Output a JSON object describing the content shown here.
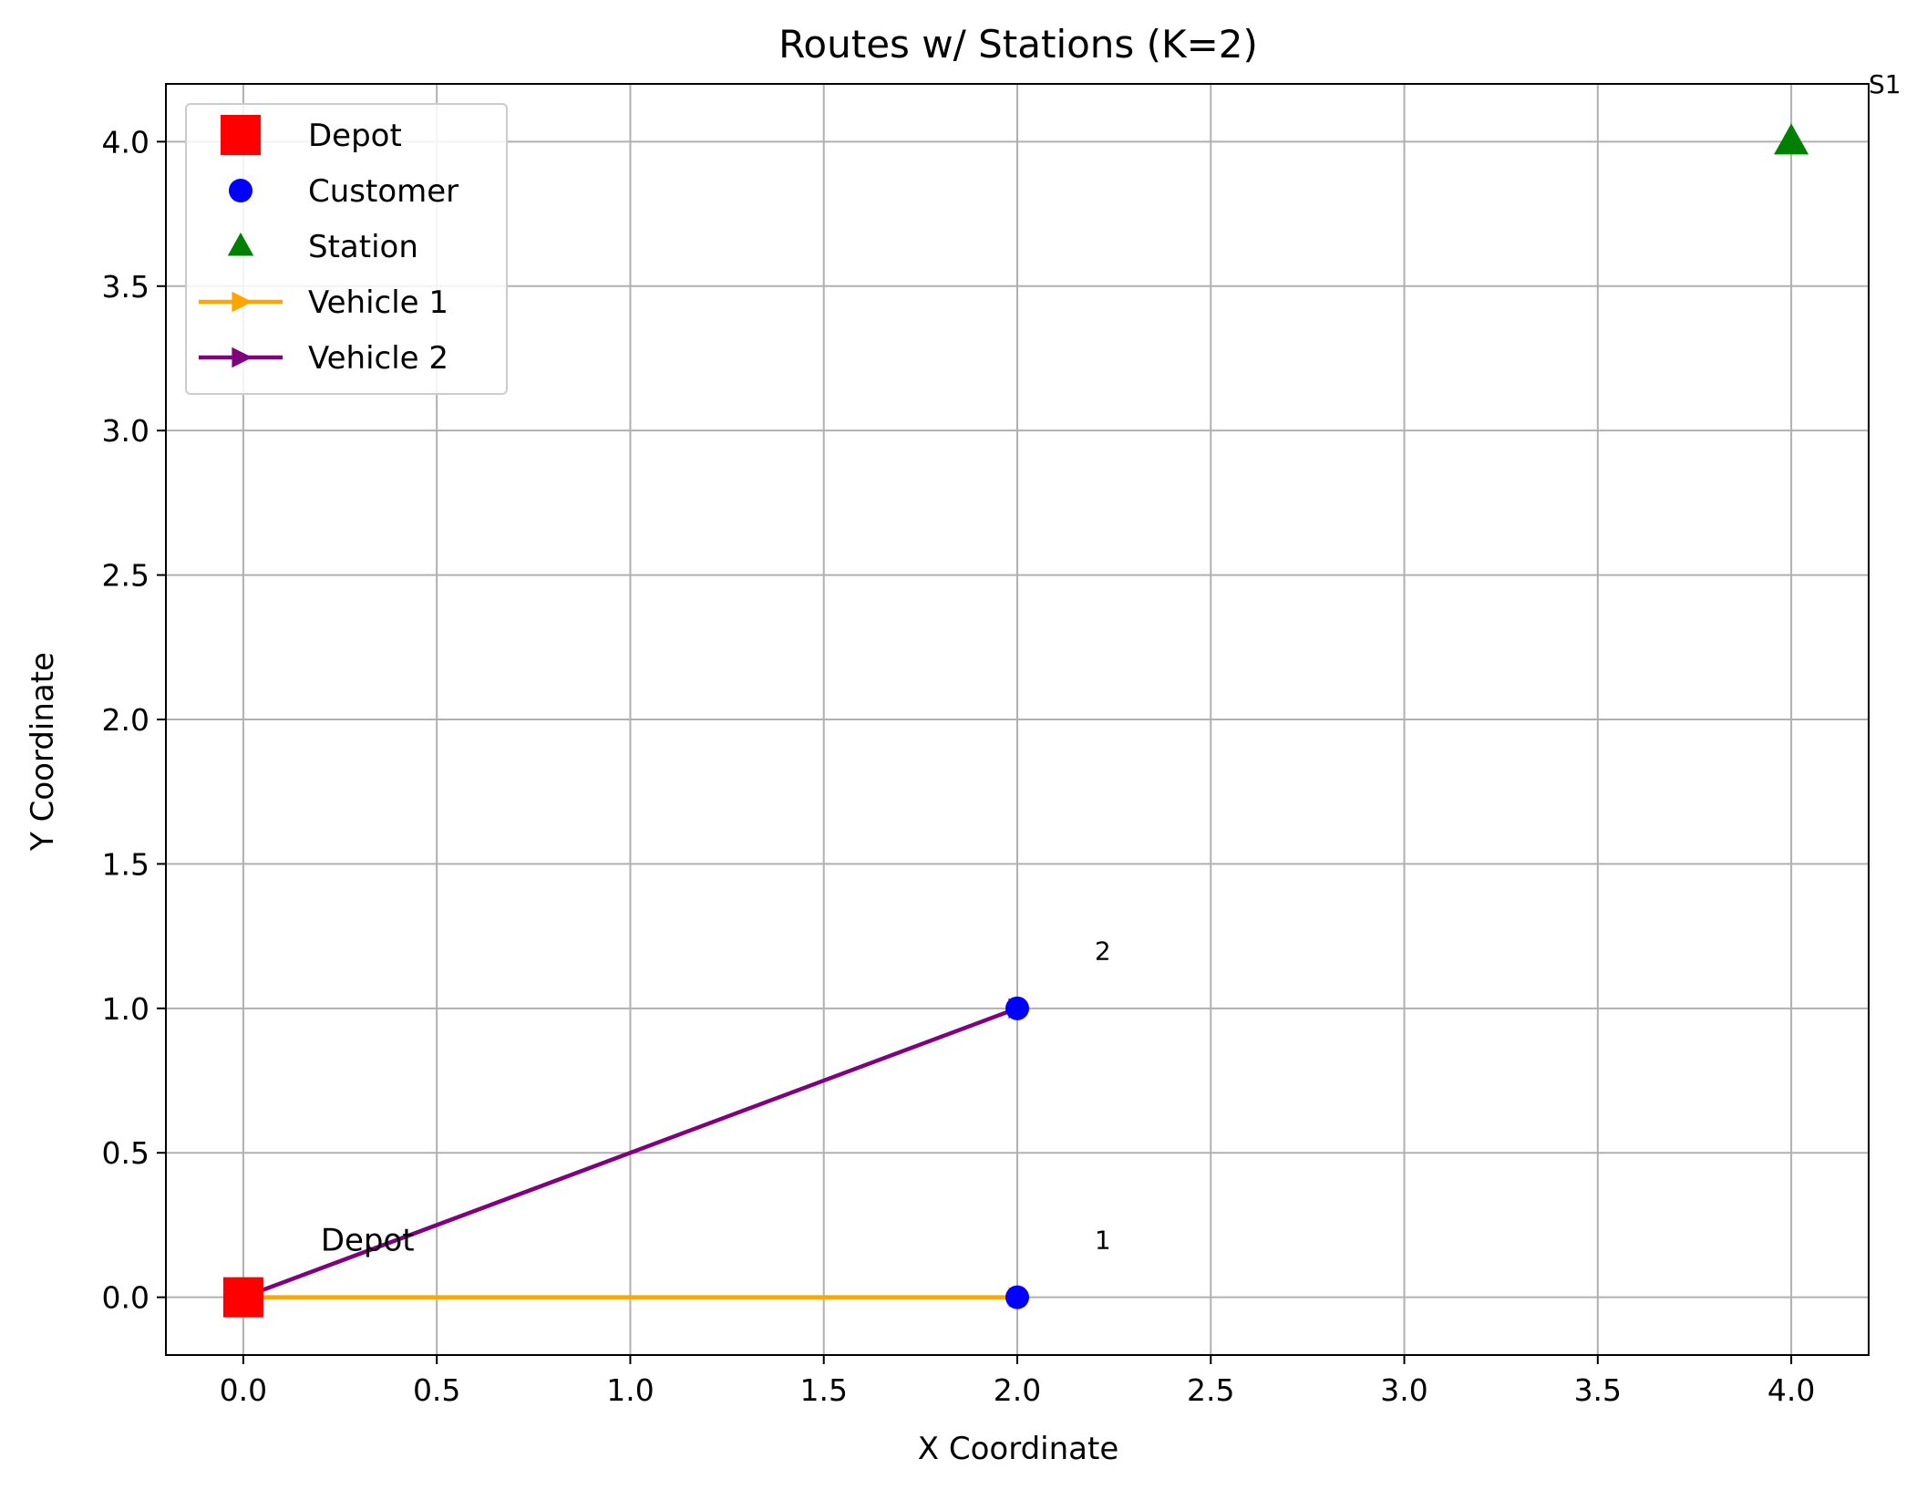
{
  "chart_data": {
    "type": "scatter",
    "title": "Routes w/ Stations (K=2)",
    "xlabel": "X Coordinate",
    "ylabel": "Y Coordinate",
    "xlim": [
      -0.2,
      4.2
    ],
    "ylim": [
      -0.2,
      4.2
    ],
    "xticks": [
      0.0,
      0.5,
      1.0,
      1.5,
      2.0,
      2.5,
      3.0,
      3.5,
      4.0
    ],
    "xtick_labels": [
      "0.0",
      "0.5",
      "1.0",
      "1.5",
      "2.0",
      "2.5",
      "3.0",
      "3.5",
      "4.0"
    ],
    "yticks": [
      0.0,
      0.5,
      1.0,
      1.5,
      2.0,
      2.5,
      3.0,
      3.5,
      4.0
    ],
    "ytick_labels": [
      "0.0",
      "0.5",
      "1.0",
      "1.5",
      "2.0",
      "2.5",
      "3.0",
      "3.5",
      "4.0"
    ],
    "grid": true,
    "legend_position": "top-left",
    "depot": {
      "name": "Depot",
      "x": 0,
      "y": 0,
      "color": "#ff0000",
      "marker": "square",
      "label": "Depot"
    },
    "customers": {
      "name": "Customer",
      "color": "#0000ff",
      "marker": "circle",
      "points": [
        {
          "x": 2,
          "y": 0,
          "label": "1"
        },
        {
          "x": 2,
          "y": 1,
          "label": "2"
        }
      ]
    },
    "stations": {
      "name": "Station",
      "color": "#008000",
      "marker": "triangle",
      "points": [
        {
          "x": 4,
          "y": 4,
          "label": "S1"
        }
      ]
    },
    "routes": [
      {
        "name": "Vehicle 1",
        "color": "#ffa500",
        "points": [
          [
            0,
            0
          ],
          [
            2,
            0
          ],
          [
            0,
            0
          ]
        ]
      },
      {
        "name": "Vehicle 2",
        "color": "#800080",
        "points": [
          [
            0,
            0
          ],
          [
            2,
            1
          ],
          [
            0,
            0
          ]
        ]
      }
    ]
  }
}
